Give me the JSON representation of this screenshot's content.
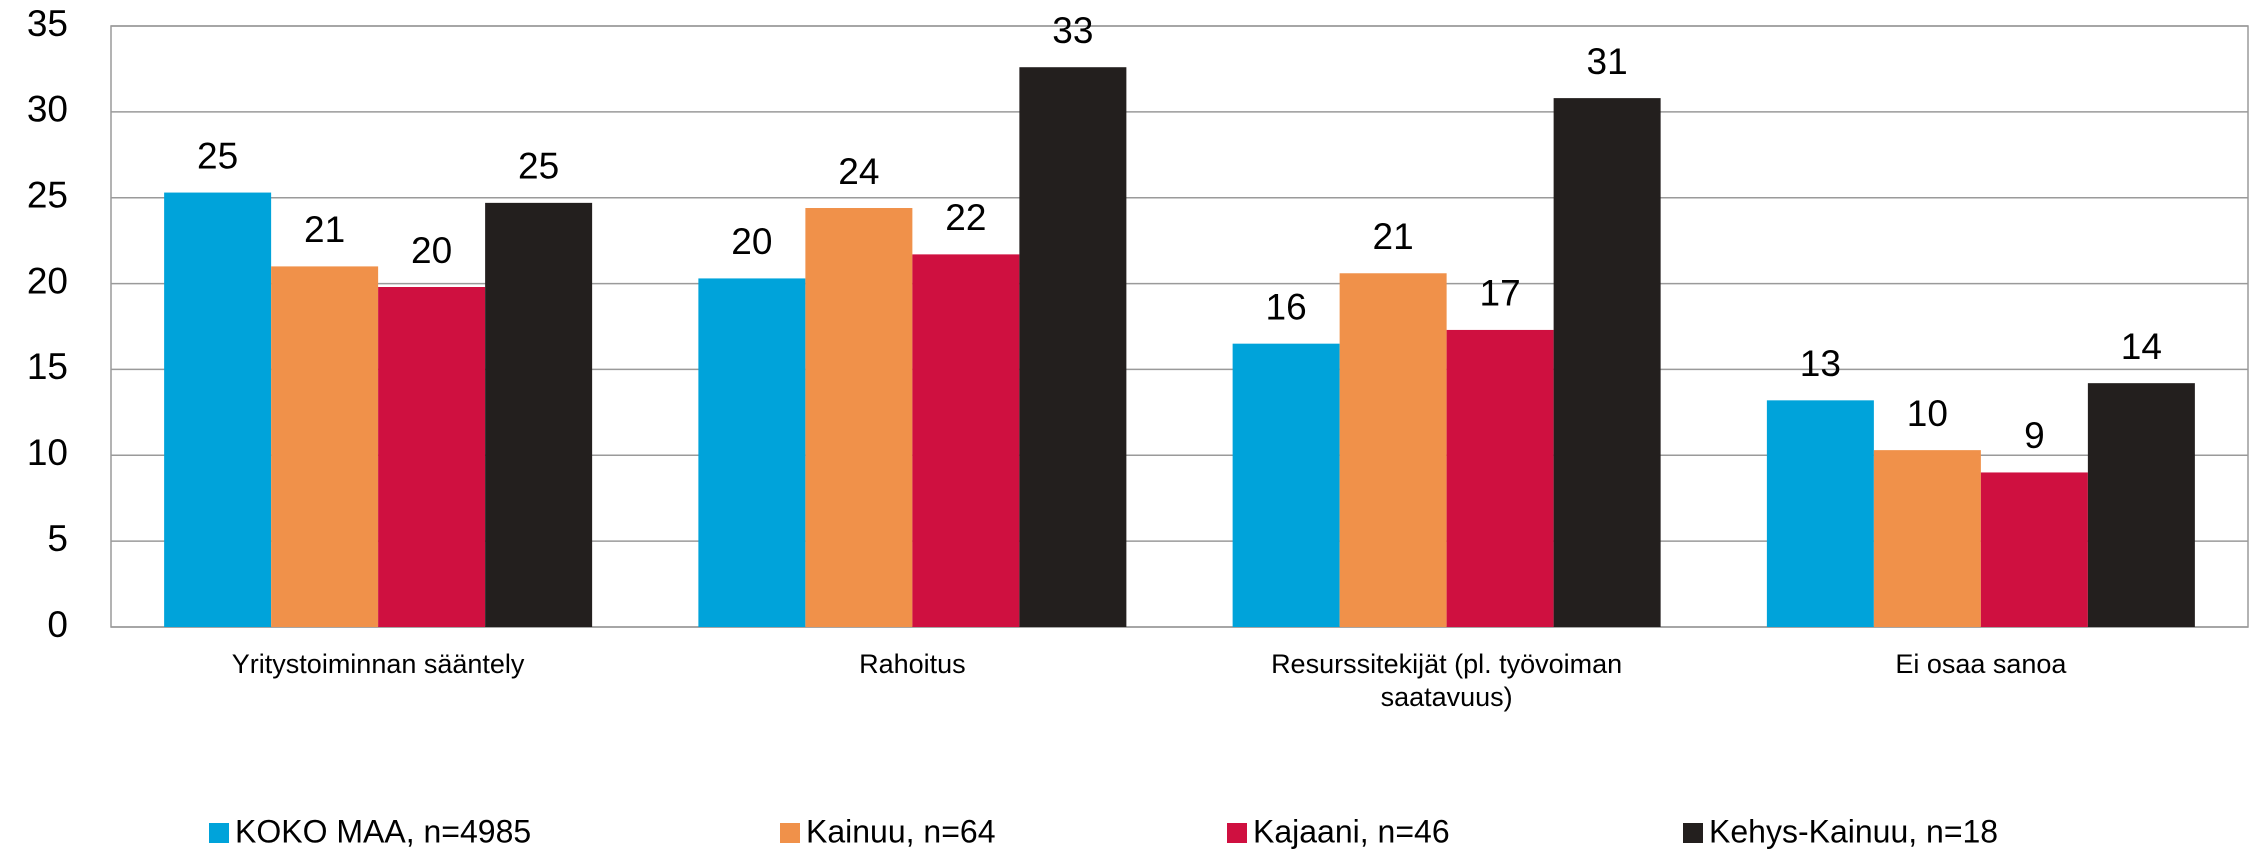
{
  "chart_data": {
    "type": "bar",
    "categories": [
      "Yritystoiminnan sääntely",
      "Rahoitus",
      "Resurssitekijät (pl. työvoiman saatavuus)",
      "Ei osaa sanoa"
    ],
    "series": [
      {
        "name": "KOKO MAA, n=4985",
        "color": "#00a3da",
        "values": [
          25.3,
          20.3,
          16.5,
          13.2
        ],
        "value_labels": [
          "25",
          "20",
          "16",
          "13"
        ]
      },
      {
        "name": "Kainuu, n=64",
        "color": "#f0914a",
        "values": [
          21,
          24.4,
          20.6,
          10.3
        ],
        "value_labels": [
          "21",
          "24",
          "21",
          "10"
        ]
      },
      {
        "name": "Kajaani, n=46",
        "color": "#cf1040",
        "values": [
          19.8,
          21.7,
          17.3,
          9
        ],
        "value_labels": [
          "20",
          "22",
          "17",
          "9"
        ]
      },
      {
        "name": "Kehys-Kainuu, n=18",
        "color": "#231f1e",
        "values": [
          24.7,
          32.6,
          30.8,
          14.2
        ],
        "value_labels": [
          "25",
          "33",
          "31",
          "14"
        ]
      }
    ],
    "ylim": [
      0,
      35
    ],
    "yticks": [
      0,
      5,
      10,
      15,
      20,
      25,
      30,
      35
    ],
    "grid": true,
    "legend": "bottom"
  }
}
